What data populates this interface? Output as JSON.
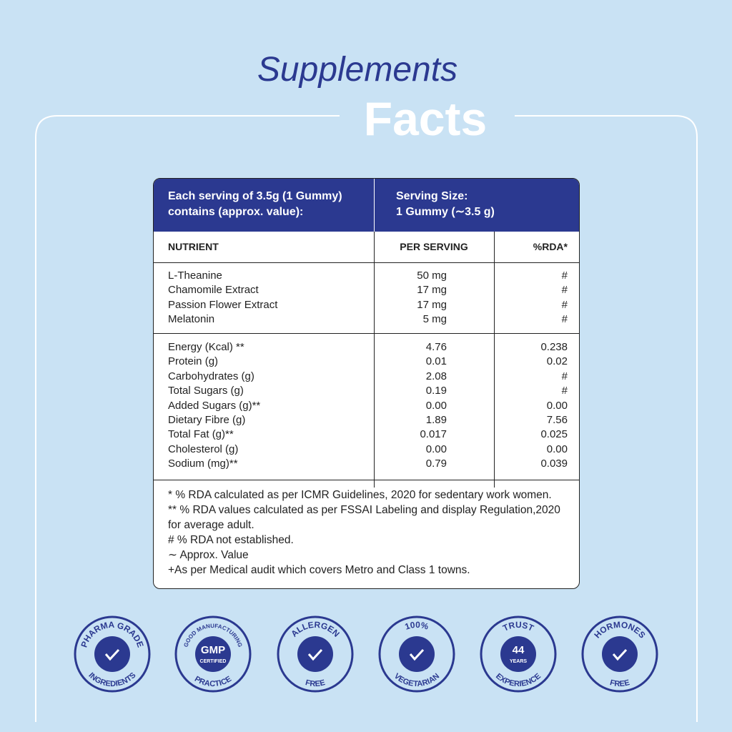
{
  "header": {
    "title_line1": "Supplements",
    "title_line2": "Facts"
  },
  "table": {
    "serving_note": [
      "Each serving of 3.5g (1 Gummy)",
      "contains (approx. value):"
    ],
    "serving_size": [
      "Serving Size:",
      "1 Gummy (∼3.5 g)"
    ],
    "columns": [
      "NUTRIENT",
      "PER SERVING",
      "%RDA*"
    ],
    "sections": [
      [
        [
          "L-Theanine",
          "50 mg",
          "#"
        ],
        [
          "Chamomile Extract",
          "17 mg",
          "#"
        ],
        [
          "Passion Flower Extract",
          "17 mg",
          "#"
        ],
        [
          "Melatonin",
          "5 mg",
          "#"
        ]
      ],
      [
        [
          "Energy (Kcal) **",
          "4.76",
          "0.238"
        ],
        [
          "Protein (g)",
          "0.01",
          "0.02"
        ],
        [
          "Carbohydrates (g)",
          "2.08",
          "#"
        ],
        [
          "Total Sugars (g)",
          "0.19",
          "#"
        ],
        [
          "Added Sugars (g)**",
          "0.00",
          "0.00"
        ],
        [
          "Dietary Fibre (g)",
          "1.89",
          "7.56"
        ],
        [
          "Total Fat (g)**",
          "0.017",
          "0.025"
        ],
        [
          "Cholesterol (g)",
          "0.00",
          "0.00"
        ],
        [
          "Sodium (mg)**",
          "0.79",
          "0.039"
        ]
      ]
    ],
    "footnotes": [
      "* % RDA calculated as per ICMR Guidelines, 2020 for sedentary work women.",
      "** % RDA values calculated as per FSSAI Labeling and display Regulation,2020 for average adult.",
      "# % RDA not established.",
      "∼ Approx. Value",
      "+As per Medical audit which covers Metro and Class 1 towns."
    ]
  },
  "badges": [
    {
      "top": "PHARMA GRADE",
      "bottom": "INGREDIENTS",
      "center": []
    },
    {
      "top": "GOOD MANUFACTURING",
      "bottom": "PRACTICE",
      "center": [
        "GMP",
        "CERTIFIED"
      ]
    },
    {
      "top": "ALLERGEN",
      "bottom": "FREE",
      "center": []
    },
    {
      "top": "100%",
      "bottom": "VEGETARIAN",
      "center": []
    },
    {
      "top": "TRUST",
      "bottom": "EXPERIENCE",
      "center": [
        "44",
        "YEARS"
      ]
    },
    {
      "top": "HORMONES",
      "bottom": "FREE",
      "center": []
    }
  ]
}
